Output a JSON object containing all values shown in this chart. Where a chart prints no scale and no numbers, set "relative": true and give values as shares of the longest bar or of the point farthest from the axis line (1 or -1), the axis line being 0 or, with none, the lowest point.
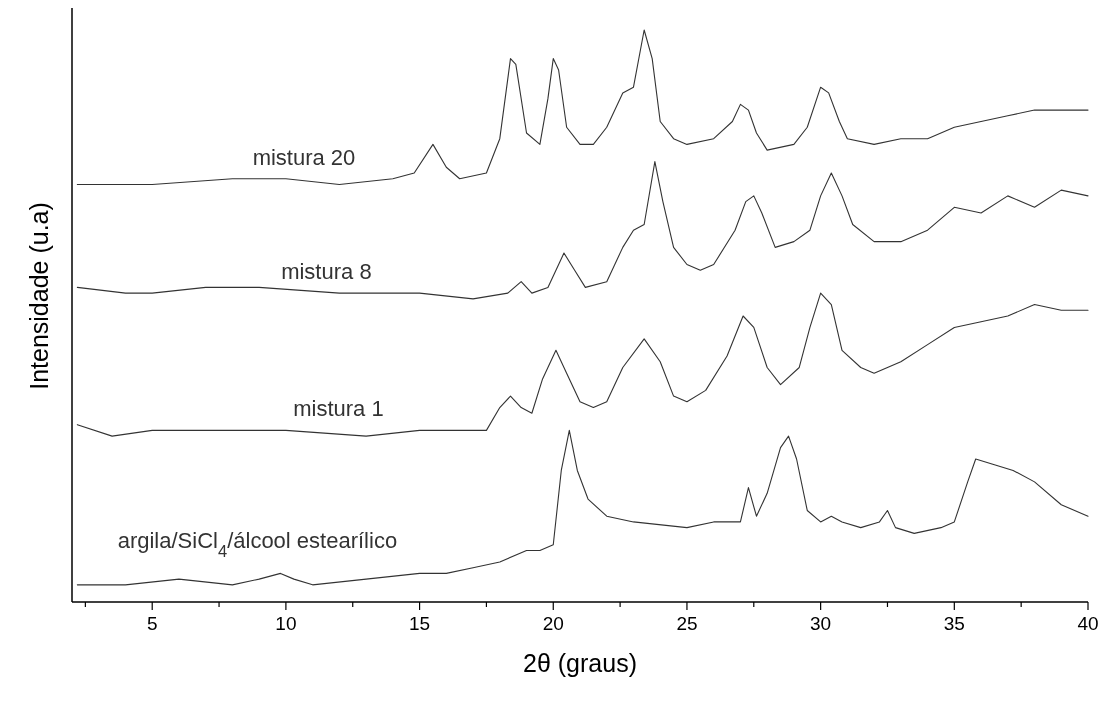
{
  "chart_data": {
    "type": "line",
    "relative": true,
    "xlabel": "2θ (graus)",
    "ylabel": "Intensidade (u.a)",
    "xlim": [
      2,
      40
    ],
    "xticks": [
      {
        "value": 2.5,
        "label": null
      },
      5,
      {
        "value": 7.5,
        "label": null
      },
      10,
      {
        "value": 12.5,
        "label": null
      },
      15,
      {
        "value": 17.5,
        "label": null
      },
      20,
      {
        "value": 22.5,
        "label": null
      },
      25,
      {
        "value": 27.5,
        "label": null
      },
      30,
      {
        "value": 32.5,
        "label": null
      },
      35,
      {
        "value": 37.5,
        "label": null
      },
      40
    ],
    "legend": false,
    "grid": false,
    "marker": "none",
    "line_style": "solid",
    "series": [
      {
        "name": "mistura 20",
        "color": "#333333",
        "x": [
          2.2,
          3,
          5,
          8,
          10,
          12,
          14,
          14.8,
          15.5,
          16,
          16.5,
          17.5,
          18,
          18.4,
          18.6,
          19,
          19.5,
          19.8,
          20,
          20.2,
          20.5,
          21,
          21.5,
          22,
          22.6,
          23,
          23.4,
          23.7,
          24,
          24.5,
          25,
          26,
          26.7,
          27,
          27.3,
          27.6,
          28,
          29,
          29.5,
          30,
          30.3,
          30.7,
          31,
          32,
          33,
          34,
          35,
          36,
          37,
          38,
          39,
          40
        ],
        "values": [
          0.73,
          0.73,
          0.73,
          0.74,
          0.74,
          0.73,
          0.74,
          0.75,
          0.8,
          0.76,
          0.74,
          0.75,
          0.81,
          0.95,
          0.94,
          0.82,
          0.8,
          0.88,
          0.95,
          0.93,
          0.83,
          0.8,
          0.8,
          0.83,
          0.89,
          0.9,
          1.0,
          0.95,
          0.84,
          0.81,
          0.8,
          0.81,
          0.84,
          0.87,
          0.86,
          0.82,
          0.79,
          0.8,
          0.83,
          0.9,
          0.89,
          0.84,
          0.81,
          0.8,
          0.81,
          0.81,
          0.83,
          0.84,
          0.85,
          0.86,
          0.86,
          0.86
        ]
      },
      {
        "name": "mistura 8",
        "color": "#333333",
        "x": [
          2.2,
          4,
          5,
          7,
          9,
          12,
          15,
          17,
          18.3,
          18.8,
          19.2,
          19.8,
          20.4,
          20.8,
          21.2,
          22,
          22.6,
          23,
          23.4,
          23.8,
          24.1,
          24.5,
          25,
          25.5,
          26,
          26.8,
          27.2,
          27.5,
          27.8,
          28.3,
          29,
          29.6,
          30,
          30.4,
          30.8,
          31.2,
          32,
          33,
          34,
          35,
          36,
          37,
          38,
          39,
          40
        ],
        "values": [
          0.55,
          0.54,
          0.54,
          0.55,
          0.55,
          0.54,
          0.54,
          0.53,
          0.54,
          0.56,
          0.54,
          0.55,
          0.61,
          0.58,
          0.55,
          0.56,
          0.62,
          0.65,
          0.66,
          0.77,
          0.7,
          0.62,
          0.59,
          0.58,
          0.59,
          0.65,
          0.7,
          0.71,
          0.68,
          0.62,
          0.63,
          0.65,
          0.71,
          0.75,
          0.71,
          0.66,
          0.63,
          0.63,
          0.65,
          0.69,
          0.68,
          0.71,
          0.69,
          0.72,
          0.71
        ]
      },
      {
        "name": "mistura 1",
        "color": "#333333",
        "x": [
          2.2,
          3.5,
          5,
          7,
          10,
          13,
          15,
          15.5,
          16,
          17.5,
          18,
          18.4,
          18.8,
          19.2,
          19.6,
          20.1,
          20.5,
          21,
          21.5,
          22,
          22.6,
          23.4,
          24,
          24.5,
          25,
          25.7,
          26.5,
          27.1,
          27.5,
          28,
          28.5,
          29.2,
          29.6,
          30,
          30.4,
          30.8,
          31.5,
          32,
          33,
          34,
          35,
          36,
          37,
          38,
          39,
          40
        ],
        "values": [
          0.31,
          0.29,
          0.3,
          0.3,
          0.3,
          0.29,
          0.3,
          0.3,
          0.3,
          0.3,
          0.34,
          0.36,
          0.34,
          0.33,
          0.39,
          0.44,
          0.4,
          0.35,
          0.34,
          0.35,
          0.41,
          0.46,
          0.42,
          0.36,
          0.35,
          0.37,
          0.43,
          0.5,
          0.48,
          0.41,
          0.38,
          0.41,
          0.48,
          0.54,
          0.52,
          0.44,
          0.41,
          0.4,
          0.42,
          0.45,
          0.48,
          0.49,
          0.5,
          0.52,
          0.51,
          0.51
        ]
      },
      {
        "name": "argila/SiCl$_{4}$/álcool estearílico",
        "color": "#333333",
        "x": [
          2.2,
          4,
          6,
          8,
          9,
          9.8,
          10.3,
          11,
          13,
          15,
          15.5,
          16,
          17,
          18,
          19,
          19.5,
          20,
          20.3,
          20.6,
          20.9,
          21.3,
          22,
          23,
          25,
          26,
          26.5,
          27,
          27.3,
          27.6,
          28,
          28.5,
          28.8,
          29.1,
          29.5,
          30,
          30.4,
          30.8,
          31.5,
          32.2,
          32.5,
          32.8,
          33.5,
          34.5,
          35,
          35.5,
          35.8,
          36.5,
          37.2,
          38,
          39,
          40
        ],
        "values": [
          0.03,
          0.03,
          0.04,
          0.03,
          0.04,
          0.05,
          0.04,
          0.03,
          0.04,
          0.05,
          0.05,
          0.05,
          0.06,
          0.07,
          0.09,
          0.09,
          0.1,
          0.23,
          0.3,
          0.23,
          0.18,
          0.15,
          0.14,
          0.13,
          0.14,
          0.14,
          0.14,
          0.2,
          0.15,
          0.19,
          0.27,
          0.29,
          0.25,
          0.16,
          0.14,
          0.15,
          0.14,
          0.13,
          0.14,
          0.16,
          0.13,
          0.12,
          0.13,
          0.14,
          0.21,
          0.25,
          0.24,
          0.23,
          0.21,
          0.17,
          0.15
        ]
      }
    ]
  }
}
